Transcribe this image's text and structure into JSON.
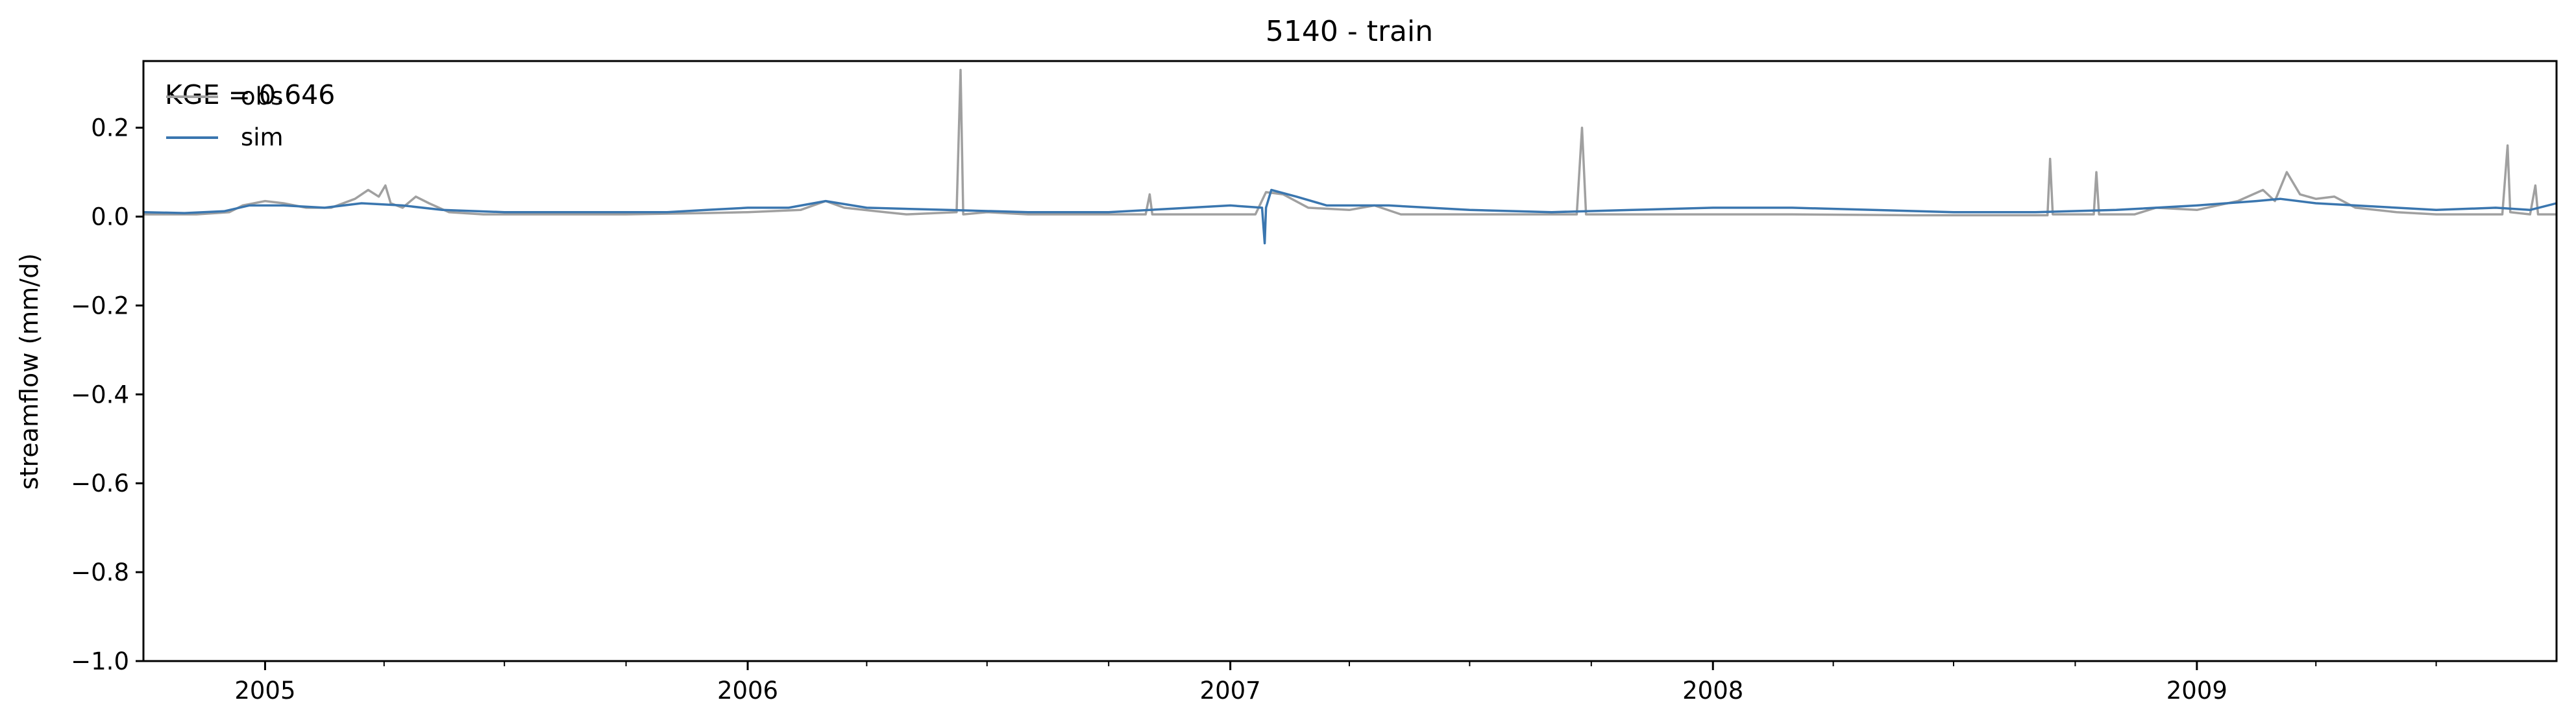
{
  "chart_data": {
    "type": "line",
    "title": "5140 - train",
    "xlabel": "",
    "ylabel": "streamflow (mm/d)",
    "x_range": [
      "2004-10-01",
      "2009-09-30"
    ],
    "ylim": [
      -1.0,
      0.35
    ],
    "x_ticks": [
      "2005",
      "2006",
      "2007",
      "2008",
      "2009"
    ],
    "y_ticks": [
      "0.2",
      "0.0",
      "−0.2",
      "−0.4",
      "−0.6",
      "−0.8",
      "−1.0"
    ],
    "annotation": "KGE = 0.646",
    "legend_position": "top-left",
    "grid": false,
    "series": [
      {
        "name": "obs",
        "color": "#a0a0a0",
        "points": [
          [
            "2004-10-01",
            0.005
          ],
          [
            "2004-11-10",
            0.005
          ],
          [
            "2004-12-05",
            0.01
          ],
          [
            "2004-12-15",
            0.025
          ],
          [
            "2005-01-01",
            0.035
          ],
          [
            "2005-01-15",
            0.03
          ],
          [
            "2005-02-01",
            0.02
          ],
          [
            "2005-02-20",
            0.02
          ],
          [
            "2005-03-10",
            0.04
          ],
          [
            "2005-03-20",
            0.06
          ],
          [
            "2005-03-28",
            0.045
          ],
          [
            "2005-04-02",
            0.07
          ],
          [
            "2005-04-06",
            0.03
          ],
          [
            "2005-04-15",
            0.02
          ],
          [
            "2005-04-25",
            0.045
          ],
          [
            "2005-05-05",
            0.03
          ],
          [
            "2005-05-20",
            0.01
          ],
          [
            "2005-06-15",
            0.005
          ],
          [
            "2005-08-01",
            0.005
          ],
          [
            "2005-10-01",
            0.005
          ],
          [
            "2005-12-01",
            0.008
          ],
          [
            "2006-01-01",
            0.01
          ],
          [
            "2006-02-10",
            0.015
          ],
          [
            "2006-03-01",
            0.035
          ],
          [
            "2006-03-15",
            0.02
          ],
          [
            "2006-04-15",
            0.01
          ],
          [
            "2006-05-01",
            0.005
          ],
          [
            "2006-06-08",
            0.01
          ],
          [
            "2006-06-11",
            0.33
          ],
          [
            "2006-06-13",
            0.005
          ],
          [
            "2006-07-01",
            0.01
          ],
          [
            "2006-08-01",
            0.005
          ],
          [
            "2006-10-01",
            0.005
          ],
          [
            "2006-10-29",
            0.005
          ],
          [
            "2006-11-01",
            0.05
          ],
          [
            "2006-11-03",
            0.005
          ],
          [
            "2007-01-01",
            0.005
          ],
          [
            "2007-01-20",
            0.005
          ],
          [
            "2007-01-28",
            0.055
          ],
          [
            "2007-02-10",
            0.05
          ],
          [
            "2007-03-01",
            0.02
          ],
          [
            "2007-04-01",
            0.015
          ],
          [
            "2007-04-20",
            0.025
          ],
          [
            "2007-05-10",
            0.005
          ],
          [
            "2007-07-01",
            0.005
          ],
          [
            "2007-09-20",
            0.005
          ],
          [
            "2007-09-24",
            0.2
          ],
          [
            "2007-09-27",
            0.005
          ],
          [
            "2007-11-01",
            0.005
          ],
          [
            "2008-01-01",
            0.005
          ],
          [
            "2008-03-01",
            0.005
          ],
          [
            "2008-06-01",
            0.003
          ],
          [
            "2008-09-01",
            0.003
          ],
          [
            "2008-09-10",
            0.003
          ],
          [
            "2008-09-12",
            0.13
          ],
          [
            "2008-09-14",
            0.005
          ],
          [
            "2008-10-15",
            0.005
          ],
          [
            "2008-10-17",
            0.1
          ],
          [
            "2008-10-19",
            0.005
          ],
          [
            "2008-11-15",
            0.005
          ],
          [
            "2008-12-01",
            0.02
          ],
          [
            "2009-01-01",
            0.015
          ],
          [
            "2009-02-01",
            0.035
          ],
          [
            "2009-02-20",
            0.06
          ],
          [
            "2009-03-01",
            0.035
          ],
          [
            "2009-03-10",
            0.1
          ],
          [
            "2009-03-20",
            0.05
          ],
          [
            "2009-04-01",
            0.04
          ],
          [
            "2009-04-15",
            0.045
          ],
          [
            "2009-05-01",
            0.02
          ],
          [
            "2009-06-01",
            0.01
          ],
          [
            "2009-07-01",
            0.005
          ],
          [
            "2009-08-20",
            0.005
          ],
          [
            "2009-08-24",
            0.16
          ],
          [
            "2009-08-26",
            0.01
          ],
          [
            "2009-09-10",
            0.005
          ],
          [
            "2009-09-14",
            0.07
          ],
          [
            "2009-09-16",
            0.005
          ],
          [
            "2009-09-30",
            0.005
          ]
        ]
      },
      {
        "name": "sim",
        "color": "#3a76af",
        "points": [
          [
            "2004-10-01",
            0.01
          ],
          [
            "2004-11-01",
            0.008
          ],
          [
            "2004-12-01",
            0.012
          ],
          [
            "2004-12-20",
            0.025
          ],
          [
            "2005-01-15",
            0.025
          ],
          [
            "2005-02-15",
            0.02
          ],
          [
            "2005-03-15",
            0.03
          ],
          [
            "2005-04-15",
            0.025
          ],
          [
            "2005-05-15",
            0.015
          ],
          [
            "2005-07-01",
            0.01
          ],
          [
            "2005-09-01",
            0.01
          ],
          [
            "2005-11-01",
            0.01
          ],
          [
            "2005-12-01",
            0.015
          ],
          [
            "2006-01-01",
            0.02
          ],
          [
            "2006-02-01",
            0.02
          ],
          [
            "2006-03-01",
            0.035
          ],
          [
            "2006-04-01",
            0.02
          ],
          [
            "2006-06-01",
            0.015
          ],
          [
            "2006-08-01",
            0.01
          ],
          [
            "2006-10-01",
            0.01
          ],
          [
            "2006-12-01",
            0.02
          ],
          [
            "2007-01-01",
            0.025
          ],
          [
            "2007-01-25",
            0.02
          ],
          [
            "2007-01-27",
            -0.06
          ],
          [
            "2007-01-28",
            0.02
          ],
          [
            "2007-02-01",
            0.06
          ],
          [
            "2007-02-20",
            0.045
          ],
          [
            "2007-03-15",
            0.025
          ],
          [
            "2007-05-01",
            0.025
          ],
          [
            "2007-07-01",
            0.015
          ],
          [
            "2007-09-01",
            0.01
          ],
          [
            "2007-11-01",
            0.015
          ],
          [
            "2008-01-01",
            0.02
          ],
          [
            "2008-03-01",
            0.02
          ],
          [
            "2008-05-01",
            0.015
          ],
          [
            "2008-07-01",
            0.01
          ],
          [
            "2008-09-01",
            0.01
          ],
          [
            "2008-11-01",
            0.015
          ],
          [
            "2009-01-01",
            0.025
          ],
          [
            "2009-02-15",
            0.035
          ],
          [
            "2009-03-05",
            0.04
          ],
          [
            "2009-04-01",
            0.03
          ],
          [
            "2009-05-01",
            0.025
          ],
          [
            "2009-06-01",
            0.02
          ],
          [
            "2009-07-01",
            0.015
          ],
          [
            "2009-08-15",
            0.02
          ],
          [
            "2009-09-10",
            0.015
          ],
          [
            "2009-09-30",
            0.03
          ]
        ]
      }
    ]
  }
}
